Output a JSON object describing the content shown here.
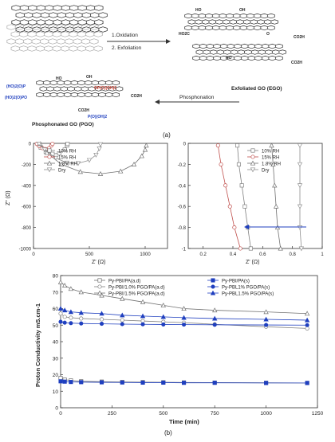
{
  "scheme": {
    "step1": "1.Oxidation",
    "step2": "2. Exfoliation",
    "ego_label": "Exfoliated GO (EGO)",
    "pgo_label": "Phosphonated GO (PGO)",
    "arrow_label": "Phosphonation",
    "groups": {
      "ho": "HO",
      "oh": "OH",
      "o": "O",
      "co2h": "CO2H",
      "ho2c": "HO2C",
      "po_left1": "(HO)2(O)P",
      "po_left2": "(HO)2(O)PO",
      "po_right1": "OP(O)(OH)2",
      "po_bottom": "P(O)(OH)2"
    },
    "colors": {
      "phosphonate": "#1f3fbf"
    }
  },
  "panel_a_label": "(a)",
  "panel_b_label": "(b)",
  "chart_data": [
    {
      "type": "scatter",
      "xlabel": "Z' (Ω)",
      "ylabel": "Z\" (Ω)",
      "xlim": [
        0,
        1200
      ],
      "ylim": [
        -1000,
        0
      ],
      "x_ticks": [
        0,
        500,
        1000
      ],
      "y_ticks": [
        0,
        -200,
        -400,
        -600,
        -800,
        -1000
      ],
      "legend": [
        "10% RH",
        "15% RH",
        "1.8% RH",
        "Dry"
      ],
      "legend_position": "top-left",
      "series": [
        {
          "name": "10% RH",
          "color": "#808080",
          "marker": "square",
          "x": [
            40,
            65,
            110,
            170,
            230,
            280,
            300,
            305
          ],
          "y": [
            -5,
            -40,
            -80,
            -100,
            -95,
            -60,
            -20,
            -5
          ]
        },
        {
          "name": "15% RH",
          "color": "#c0504d",
          "marker": "circle",
          "x": [
            30,
            50,
            80,
            110,
            140,
            160,
            170
          ],
          "y": [
            -5,
            -25,
            -45,
            -55,
            -45,
            -20,
            -5
          ]
        },
        {
          "name": "1.8% RH",
          "color": "#707070",
          "marker": "triangle",
          "x": [
            60,
            120,
            250,
            420,
            600,
            780,
            900,
            970,
            1000,
            1010
          ],
          "y": [
            -5,
            -90,
            -200,
            -270,
            -290,
            -265,
            -200,
            -120,
            -60,
            -20
          ]
        },
        {
          "name": "Dry",
          "color": "#909090",
          "marker": "triangle-down",
          "x": [
            50,
            100,
            200,
            300,
            400,
            500,
            560,
            590,
            600
          ],
          "y": [
            -5,
            -60,
            -140,
            -185,
            -190,
            -160,
            -110,
            -50,
            -10
          ]
        }
      ]
    },
    {
      "type": "scatter",
      "xlabel": "Z' (Ω)",
      "ylabel": "",
      "xlim": [
        0.1,
        1.0
      ],
      "ylim": [
        -1.0,
        0.0
      ],
      "x_ticks": [
        0.2,
        0.4,
        0.6,
        0.8,
        1.0
      ],
      "y_ticks": [
        -1.0,
        -0.8,
        -0.6,
        -0.4,
        -0.2,
        0.0
      ],
      "legend": [
        "10% RH",
        "15% RH",
        "1.8% RH",
        "Dry"
      ],
      "legend_position": "top-left",
      "annotation": "arrow pointing left at Z\" ≈ -0.2",
      "series": [
        {
          "name": "10% RH",
          "color": "#808080",
          "marker": "square",
          "x": [
            0.52,
            0.5,
            0.48,
            0.46,
            0.44,
            0.43
          ],
          "y": [
            -1.0,
            -0.8,
            -0.6,
            -0.4,
            -0.2,
            -0.02
          ]
        },
        {
          "name": "15% RH",
          "color": "#c0504d",
          "marker": "circle",
          "x": [
            0.45,
            0.41,
            0.38,
            0.35,
            0.32,
            0.3
          ],
          "y": [
            -1.0,
            -0.8,
            -0.6,
            -0.4,
            -0.2,
            -0.02
          ]
        },
        {
          "name": "1.8% RH",
          "color": "#707070",
          "marker": "triangle",
          "x": [
            0.72,
            0.7,
            0.69,
            0.68,
            0.67,
            0.66
          ],
          "y": [
            -1.0,
            -0.8,
            -0.6,
            -0.4,
            -0.2,
            -0.02
          ]
        },
        {
          "name": "Dry",
          "color": "#909090",
          "marker": "triangle-down",
          "x": [
            0.86,
            0.85,
            0.85,
            0.85,
            0.85,
            0.85
          ],
          "y": [
            -1.0,
            -0.8,
            -0.6,
            -0.4,
            -0.2,
            -0.02
          ]
        }
      ]
    },
    {
      "type": "line",
      "xlabel": "Time (min)",
      "ylabel": "Proton Conductivity mS.cm-1",
      "xlim": [
        0,
        1250
      ],
      "ylim": [
        0,
        80
      ],
      "x_ticks": [
        0,
        250,
        500,
        750,
        1000,
        1250
      ],
      "y_ticks": [
        0,
        10,
        20,
        30,
        40,
        50,
        60,
        70,
        80
      ],
      "legend_position": "top",
      "series": [
        {
          "name": "Py-PBI/PA(a.d)",
          "color": "#707070",
          "marker": "square-open",
          "x": [
            0,
            20,
            50,
            100,
            200,
            300,
            400,
            500,
            600,
            750,
            1000,
            1200
          ],
          "y": [
            18,
            17,
            16.5,
            16,
            15.8,
            15.6,
            15.5,
            15.4,
            15.3,
            15.2,
            15.1,
            15
          ]
        },
        {
          "name": "Py-PBI/1.0% PGO/PA(a.d)",
          "color": "#808080",
          "marker": "circle-open",
          "x": [
            0,
            20,
            50,
            100,
            200,
            300,
            400,
            500,
            600,
            750,
            1000,
            1200
          ],
          "y": [
            57,
            55,
            54.5,
            54,
            53.5,
            53,
            52.5,
            52,
            51.5,
            50.5,
            49,
            48
          ]
        },
        {
          "name": "Py-PBI/1.5% PGO/PA(a.d)",
          "color": "#707070",
          "marker": "triangle-open",
          "x": [
            0,
            20,
            50,
            100,
            200,
            300,
            400,
            500,
            600,
            750,
            1000,
            1200
          ],
          "y": [
            76,
            74,
            72,
            70,
            68,
            66,
            64,
            62,
            60,
            59,
            58,
            57
          ]
        },
        {
          "name": "Py-PBI/PA(s)",
          "color": "#1f3fbf",
          "marker": "square-filled",
          "x": [
            0,
            20,
            50,
            100,
            200,
            300,
            400,
            500,
            600,
            750,
            1000,
            1200
          ],
          "y": [
            16,
            15.8,
            15.6,
            15.5,
            15.4,
            15.3,
            15.2,
            15.2,
            15.1,
            15.1,
            15,
            15
          ]
        },
        {
          "name": "Py-PBL1% PGO/PA(s)",
          "color": "#1f3fbf",
          "marker": "circle-filled",
          "x": [
            0,
            20,
            50,
            100,
            200,
            300,
            400,
            500,
            600,
            750,
            1000,
            1200
          ],
          "y": [
            52,
            51.5,
            51.2,
            51,
            50.8,
            50.6,
            50.5,
            50.4,
            50.3,
            50.2,
            50.1,
            50
          ]
        },
        {
          "name": "Py-PBL1.5% PGO/PA(s)",
          "color": "#1f3fbf",
          "marker": "triangle-filled",
          "x": [
            0,
            20,
            50,
            100,
            200,
            300,
            400,
            500,
            600,
            750,
            1000,
            1200
          ],
          "y": [
            60,
            59,
            58,
            57.5,
            57,
            56,
            55.5,
            55,
            54.5,
            54,
            53.5,
            53
          ]
        }
      ]
    }
  ]
}
